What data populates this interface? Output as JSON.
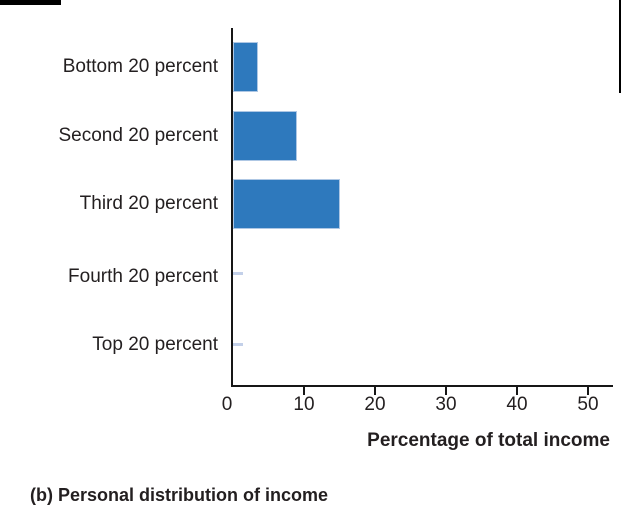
{
  "chart_data": {
    "type": "bar",
    "orientation": "horizontal",
    "title": "",
    "xlabel": "Percentage of total income",
    "ylabel": "",
    "categories": [
      "Bottom 20 percent",
      "Second 20 percent",
      "Third 20 percent",
      "Fourth 20 percent",
      "Top 20 percent"
    ],
    "values": [
      3.5,
      9,
      15,
      0,
      0
    ],
    "x_ticks": [
      "0",
      "10",
      "20",
      "30",
      "40",
      "50"
    ],
    "xlim": [
      0,
      53.5
    ],
    "grid": "off",
    "legend": "none",
    "bar_color": "#2e79bd",
    "bar_edge_color": "#aec7e4",
    "zero_bar_color": "#c3d0e9",
    "caption": "(b) Personal distribution of income"
  }
}
